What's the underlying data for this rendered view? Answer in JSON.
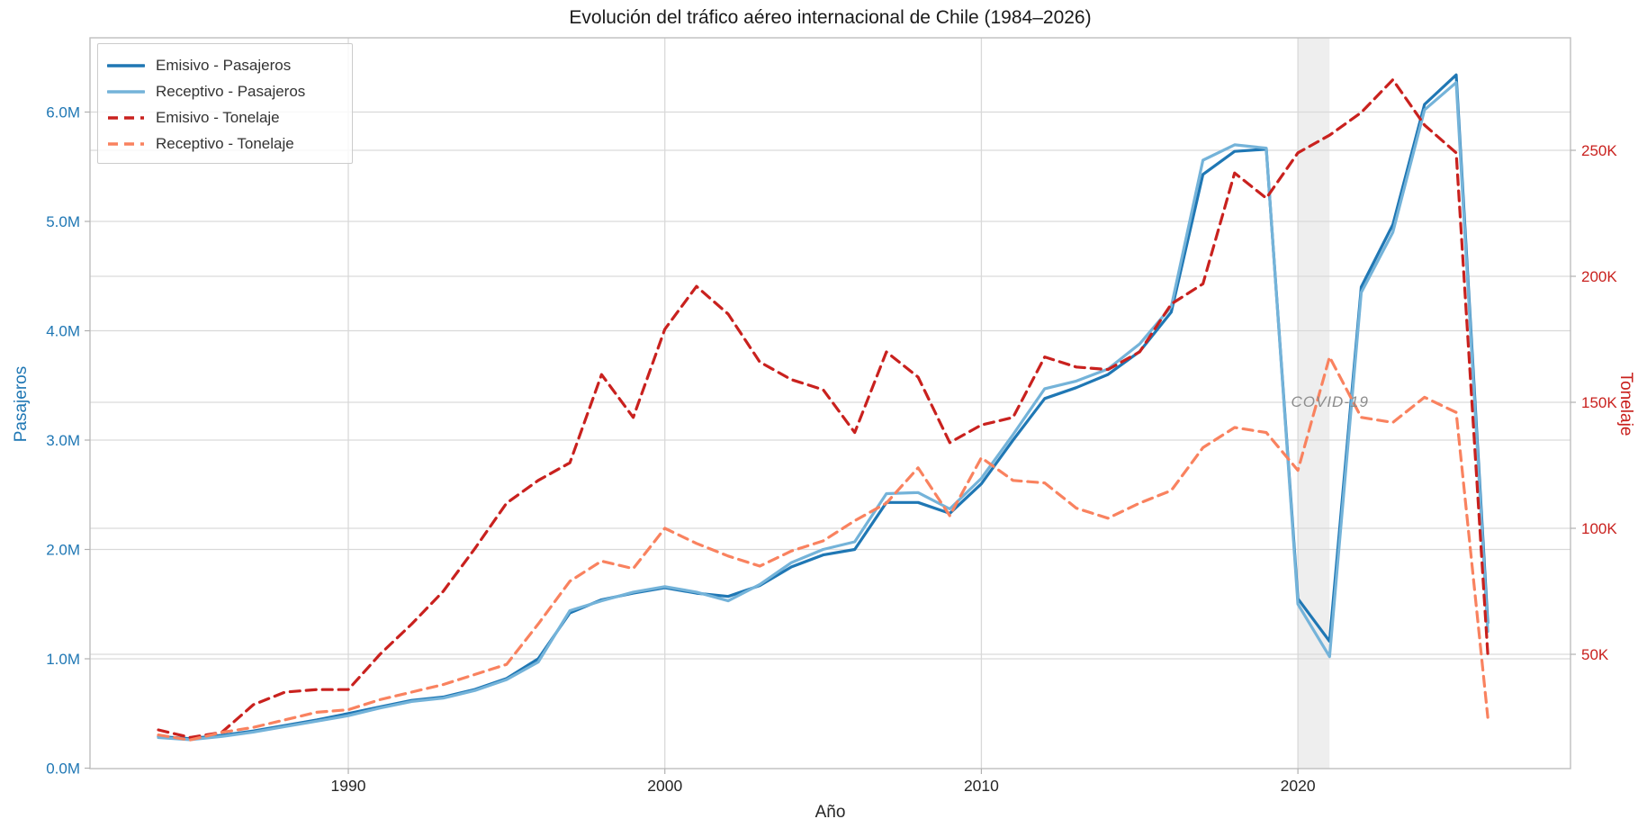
{
  "chart_data": {
    "type": "line",
    "title": "Evolución del tráfico aéreo internacional de Chile (1984–2026)",
    "xlabel": "Año",
    "ylabel_left": "Pasajeros",
    "ylabel_right": "Tonelaje",
    "grid": true,
    "legend_position": "upper left",
    "x_years": [
      1984,
      1985,
      1986,
      1987,
      1988,
      1989,
      1990,
      1991,
      1992,
      1993,
      1994,
      1995,
      1996,
      1997,
      1998,
      1999,
      2000,
      2001,
      2002,
      2003,
      2004,
      2005,
      2006,
      2007,
      2008,
      2009,
      2010,
      2011,
      2012,
      2013,
      2014,
      2015,
      2016,
      2017,
      2018,
      2019,
      2020,
      2021,
      2022,
      2023,
      2024,
      2025,
      2026
    ],
    "x_axis": {
      "label": "Año",
      "ticks": [
        {
          "v": 1990,
          "label": "1990"
        },
        {
          "v": 2000,
          "label": "2000"
        },
        {
          "v": 2010,
          "label": "2010"
        },
        {
          "v": 2020,
          "label": "2020"
        }
      ],
      "range": [
        1981.8,
        2028.6
      ]
    },
    "y_left": {
      "label": "Pasajeros",
      "unit": "millions of passengers",
      "color": "#1f77b4",
      "range": [
        0,
        6.68
      ],
      "ticks": [
        {
          "v": 0,
          "label": "0.0M"
        },
        {
          "v": 1,
          "label": "1.0M"
        },
        {
          "v": 2,
          "label": "2.0M"
        },
        {
          "v": 3,
          "label": "3.0M"
        },
        {
          "v": 4,
          "label": "4.0M"
        },
        {
          "v": 5,
          "label": "5.0M"
        },
        {
          "v": 6,
          "label": "6.0M"
        }
      ]
    },
    "y_right": {
      "label": "Tonelaje",
      "unit": "thousands of tons",
      "color": "#c9211e",
      "range": [
        4.6,
        294.6
      ],
      "ticks": [
        {
          "v": 50,
          "label": "50K"
        },
        {
          "v": 100,
          "label": "100K"
        },
        {
          "v": 150,
          "label": "150K"
        },
        {
          "v": 200,
          "label": "200K"
        },
        {
          "v": 250,
          "label": "250K"
        }
      ]
    },
    "covid_band": {
      "x0": 2020,
      "x1": 2021,
      "label": "COVID-19",
      "label_color": "#8c8c8c",
      "fill": "#e0e0e0"
    },
    "series": [
      {
        "name": "Emisivo - Pasajeros",
        "axis": "left",
        "style": "solid",
        "color": "#1f77b4",
        "unit": "M",
        "values": [
          0.29,
          0.27,
          0.3,
          0.34,
          0.39,
          0.44,
          0.5,
          0.56,
          0.62,
          0.65,
          0.72,
          0.82,
          1.0,
          1.42,
          1.54,
          1.6,
          1.65,
          1.6,
          1.57,
          1.67,
          1.84,
          1.95,
          2.0,
          2.43,
          2.43,
          2.33,
          2.6,
          3.0,
          3.38,
          3.48,
          3.6,
          3.81,
          4.17,
          5.43,
          5.64,
          5.66,
          1.55,
          1.16,
          4.4,
          4.97,
          6.07,
          6.34,
          1.33
        ]
      },
      {
        "name": "Receptivo - Pasajeros",
        "axis": "left",
        "style": "solid",
        "color": "#74b3d9",
        "unit": "M",
        "values": [
          0.28,
          0.26,
          0.29,
          0.33,
          0.38,
          0.43,
          0.48,
          0.55,
          0.61,
          0.64,
          0.71,
          0.81,
          0.97,
          1.44,
          1.53,
          1.61,
          1.66,
          1.61,
          1.53,
          1.68,
          1.88,
          2.0,
          2.07,
          2.51,
          2.52,
          2.37,
          2.65,
          3.05,
          3.47,
          3.54,
          3.65,
          3.88,
          4.22,
          5.56,
          5.7,
          5.67,
          1.5,
          1.02,
          4.35,
          4.9,
          6.02,
          6.27,
          1.25
        ]
      },
      {
        "name": "Emisivo - Tonelaje",
        "axis": "right",
        "style": "dashed",
        "color": "#c9211e",
        "unit": "K",
        "values": [
          20,
          17,
          19,
          30,
          35,
          36,
          36,
          50,
          62,
          75,
          92,
          110,
          119,
          126,
          161,
          144,
          179,
          196,
          185,
          166,
          159,
          155,
          138,
          170,
          160,
          134,
          141,
          144,
          168,
          164,
          163,
          170,
          189,
          197,
          241,
          231,
          249,
          256,
          265,
          278,
          260,
          249,
          50
        ]
      },
      {
        "name": "Receptivo - Tonelaje",
        "axis": "right",
        "style": "dashed",
        "color": "#f9825f",
        "unit": "K",
        "values": [
          18,
          16,
          19,
          21,
          24,
          27,
          28,
          32,
          35,
          38,
          42,
          46,
          62,
          79,
          87,
          84,
          100,
          94,
          89,
          85,
          91,
          95,
          103,
          110,
          124,
          105,
          128,
          119,
          118,
          108,
          104,
          110,
          115,
          132,
          140,
          138,
          123,
          168,
          144,
          142,
          152,
          146,
          25
        ]
      }
    ]
  }
}
